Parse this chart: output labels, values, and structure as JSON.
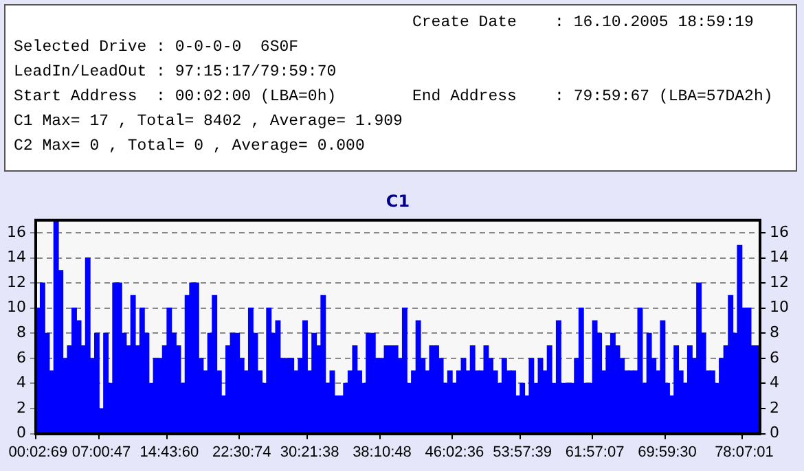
{
  "chart_data": {
    "type": "bar",
    "title": "C1",
    "annotations": [
      "Create Date    : 16.10.2005 18:59:19",
      "Selected Drive : 0-0-0-0  6S0F",
      "LeadIn/LeadOut : 97:15:17/79:59:70",
      "Start Address  : 00:02:00 (LBA=0h)",
      "End Address    : 79:59:67 (LBA=57DA2h)",
      "C1 Max= 17 , Total= 8402 , Average= 1.909",
      "C2 Max= 0 , Total= 0 , Average= 0.000"
    ],
    "categories": [
      "00:02:69",
      null,
      null,
      null,
      null,
      null,
      null,
      null,
      null,
      null,
      null,
      null,
      null,
      null,
      "07:00:47",
      null,
      null,
      null,
      null,
      null,
      null,
      null,
      null,
      null,
      null,
      null,
      null,
      null,
      null,
      "14:43:60",
      null,
      null,
      null,
      null,
      null,
      null,
      null,
      null,
      null,
      null,
      null,
      null,
      null,
      null,
      null,
      "22:30:74",
      null,
      null,
      null,
      null,
      null,
      null,
      null,
      null,
      null,
      null,
      null,
      null,
      null,
      null,
      "30:21:38",
      null,
      null,
      null,
      null,
      null,
      null,
      null,
      null,
      null,
      null,
      null,
      null,
      null,
      null,
      null,
      "38:10:48",
      null,
      null,
      null,
      null,
      null,
      null,
      null,
      null,
      null,
      null,
      null,
      null,
      null,
      null,
      null,
      "46:02:36",
      null,
      null,
      null,
      null,
      null,
      null,
      null,
      null,
      null,
      null,
      null,
      null,
      null,
      null,
      "53:57:39",
      null,
      null,
      null,
      null,
      null,
      null,
      null,
      null,
      null,
      null,
      null,
      null,
      null,
      null,
      null,
      "61:57:07",
      null,
      null,
      null,
      null,
      null,
      null,
      null,
      null,
      null,
      null,
      null,
      null,
      null,
      null,
      null,
      "69:59:30",
      null,
      null,
      null,
      null,
      null,
      null,
      null,
      null,
      null,
      null,
      null,
      null,
      null,
      null,
      null,
      null,
      "78:07:01",
      null,
      null,
      null
    ],
    "values": [
      10,
      12,
      8,
      5,
      17,
      13,
      6,
      7,
      10,
      9,
      7,
      14,
      6,
      8,
      2,
      8,
      4,
      12,
      12,
      8,
      7,
      11,
      7,
      10,
      8,
      4,
      6,
      6,
      7,
      10,
      8,
      7,
      4,
      11,
      12,
      12,
      6,
      5,
      8,
      11,
      5,
      3,
      7,
      8,
      8,
      6,
      5,
      10,
      8,
      5,
      4,
      10,
      8,
      9,
      6,
      6,
      6,
      5,
      6,
      9,
      5,
      8,
      7,
      11,
      4,
      5,
      3,
      3,
      4,
      5,
      7,
      5,
      4,
      8,
      8,
      6,
      6,
      7,
      7,
      7,
      6,
      10,
      4,
      5,
      9,
      6,
      5,
      7,
      7,
      6,
      4,
      5,
      4,
      5,
      6,
      5,
      7,
      5,
      5,
      7,
      6,
      5,
      4,
      6,
      5,
      5,
      3,
      4,
      3,
      6,
      4,
      6,
      5,
      7,
      4,
      9,
      4,
      4,
      4,
      6,
      10,
      4,
      4,
      9,
      8,
      5,
      7,
      8,
      7,
      6,
      5,
      5,
      5,
      10,
      4,
      8,
      6,
      5,
      9,
      4,
      3,
      7,
      5,
      4,
      7,
      6,
      12,
      8,
      5,
      5,
      4,
      6,
      7,
      11,
      8,
      15,
      10,
      10,
      7,
      7
    ],
    "color": "#0000ff",
    "ylim": [
      0,
      17
    ],
    "yticks": [
      0,
      2,
      4,
      6,
      8,
      10,
      12,
      14,
      16
    ],
    "y2lim": [
      0,
      17
    ],
    "y2ticks": [
      0,
      2,
      4,
      6,
      8,
      10,
      12,
      14,
      16
    ],
    "grid": "y"
  }
}
